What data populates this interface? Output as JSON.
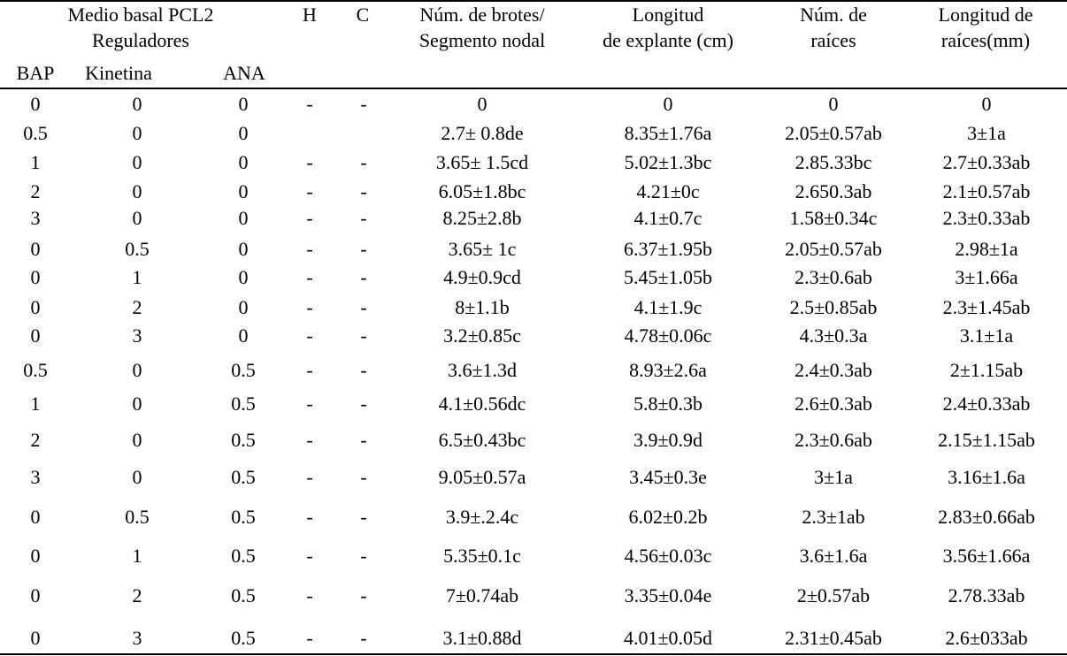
{
  "header": {
    "group_line1": "Medio basal PCL2",
    "group_line2": "Reguladores",
    "bap": "BAP",
    "kinetina": "Kinetina",
    "ana": "ANA",
    "h": "H",
    "c": "C",
    "brotes_line1": "Núm. de brotes/",
    "brotes_line2": "Segmento nodal",
    "longitud_line1": "Longitud",
    "longitud_line2": "de explante (cm)",
    "raices_line1": "Núm. de",
    "raices_line2": "raíces",
    "longraices_line1": "Longitud de",
    "longraices_line2": "raíces(mm)"
  },
  "rows": [
    [
      "0",
      "0",
      "0",
      "-",
      "-",
      "0",
      "0",
      "0",
      "0"
    ],
    [
      "0.5",
      "0",
      "0",
      "",
      "",
      "2.7± 0.8de",
      "8.35±1.76a",
      "2.05±0.57ab",
      "3±1a"
    ],
    [
      "1",
      "0",
      "0",
      "-",
      "-",
      "3.65± 1.5cd",
      "5.02±1.3bc",
      "2.85.33bc",
      "2.7±0.33ab"
    ],
    [
      "2",
      "0",
      "0",
      "-",
      "-",
      "6.05±1.8bc",
      "4.21±0c",
      "2.650.3ab",
      "2.1±0.57ab"
    ],
    [
      "3",
      "0",
      "0",
      "-",
      "-",
      "8.25±2.8b",
      "4.1±0.7c",
      "1.58±0.34c",
      "2.3±0.33ab"
    ],
    [
      "0",
      "0.5",
      "0",
      "-",
      "-",
      "3.65± 1c",
      "6.37±1.95b",
      "2.05±0.57ab",
      "2.98±1a"
    ],
    [
      "0",
      "1",
      "0",
      "-",
      "-",
      "4.9±0.9cd",
      "5.45±1.05b",
      "2.3±0.6ab",
      "3±1.66a"
    ],
    [
      "0",
      "2",
      "0",
      "-",
      "-",
      "8±1.1b",
      "4.1±1.9c",
      "2.5±0.85ab",
      "2.3±1.45ab"
    ],
    [
      "0",
      "3",
      "0",
      "-",
      "-",
      "3.2±0.85c",
      "4.78±0.06c",
      "4.3±0.3a",
      "3.1±1a"
    ],
    [
      "0.5",
      "0",
      "0.5",
      "-",
      "-",
      "3.6±1.3d",
      "8.93±2.6a",
      "2.4±0.3ab",
      "2±1.15ab"
    ],
    [
      "1",
      "0",
      "0.5",
      "-",
      "-",
      "4.1±0.56dc",
      "5.8±0.3b",
      "2.6±0.3ab",
      "2.4±0.33ab"
    ],
    [
      "2",
      "0",
      "0.5",
      "-",
      "-",
      "6.5±0.43bc",
      "3.9±0.9d",
      "2.3±0.6ab",
      "2.15±1.15ab"
    ],
    [
      "3",
      "0",
      "0.5",
      "-",
      "-",
      "9.05±0.57a",
      "3.45±0.3e",
      "3±1a",
      "3.16±1.6a"
    ],
    [
      "0",
      "0.5",
      "0.5",
      "-",
      "-",
      "3.9±.2.4c",
      "6.02±0.2b",
      "2.3±1ab",
      "2.83±0.66ab"
    ],
    [
      "0",
      "1",
      "0.5",
      "-",
      "-",
      "5.35±0.1c",
      "4.56±0.03c",
      "3.6±1.6a",
      "3.56±1.66a"
    ],
    [
      "0",
      "2",
      "0.5",
      "-",
      "-",
      "7±0.74ab",
      "3.35±0.04e",
      "2±0.57ab",
      "2.78.33ab"
    ],
    [
      "0",
      "3",
      "0.5",
      "-",
      "-",
      "3.1±0.88d",
      "4.01±0.05d",
      "2.31±0.45ab",
      "2.6±033ab"
    ]
  ]
}
